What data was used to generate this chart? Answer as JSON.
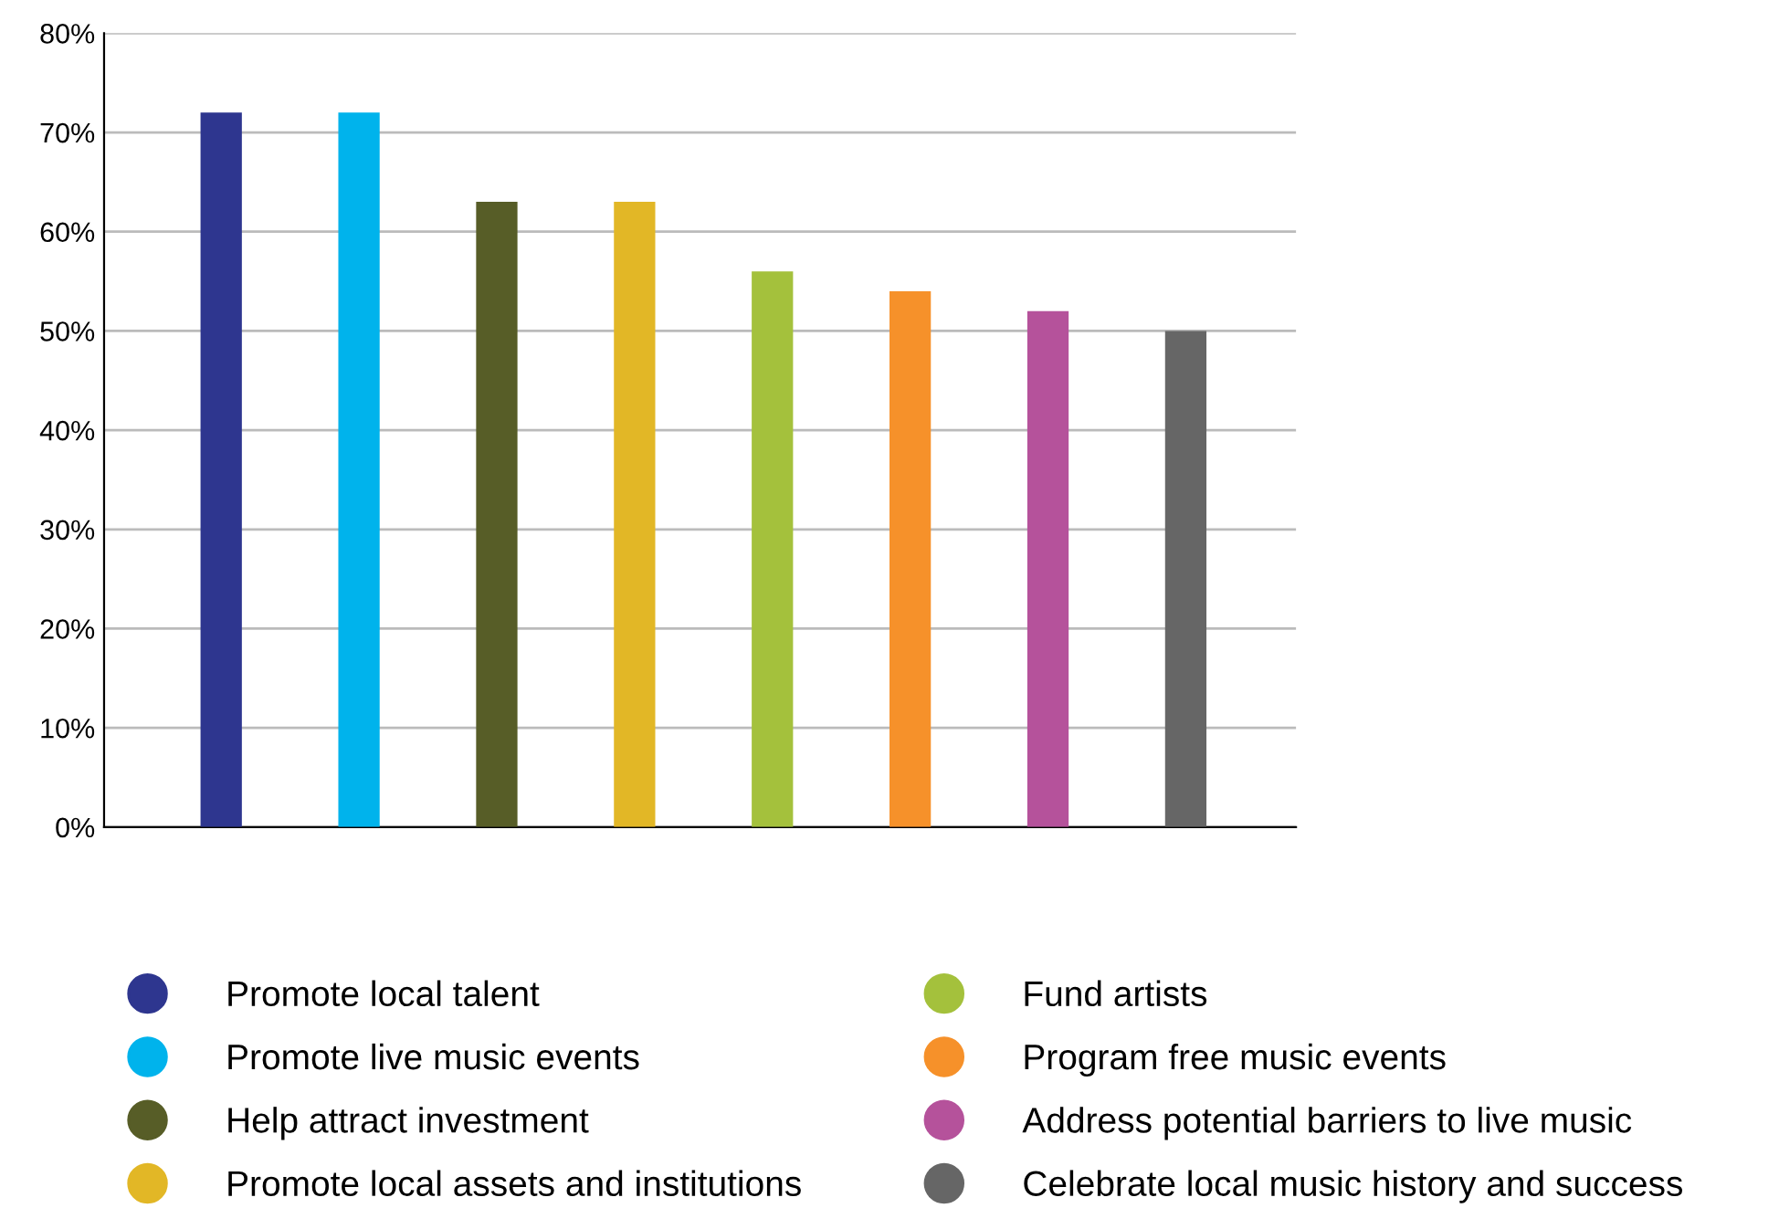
{
  "chart_data": {
    "type": "bar",
    "categories": [
      null,
      null,
      null,
      null,
      null,
      null,
      null,
      null
    ],
    "series": [
      {
        "name": "Promote local talent",
        "color": "#2e368f",
        "values": [
          72,
          null,
          null,
          null,
          null,
          null,
          null,
          null
        ]
      },
      {
        "name": "Promote live music events",
        "color": "#00b3ec",
        "values": [
          null,
          72,
          null,
          null,
          null,
          null,
          null,
          null
        ]
      },
      {
        "name": "Help attract investment",
        "color": "#575d27",
        "values": [
          null,
          null,
          63,
          null,
          null,
          null,
          null,
          null
        ]
      },
      {
        "name": "Promote local assets and institutions",
        "color": "#e2b726",
        "values": [
          null,
          null,
          null,
          63,
          null,
          null,
          null,
          null
        ]
      },
      {
        "name": "Fund artists",
        "color": "#a4c13c",
        "values": [
          null,
          null,
          null,
          null,
          56,
          null,
          null,
          null
        ]
      },
      {
        "name": "Program free music events",
        "color": "#f6912a",
        "values": [
          null,
          null,
          null,
          null,
          null,
          54,
          null,
          null
        ]
      },
      {
        "name": "Address potential barriers to live music",
        "color": "#b5529b",
        "values": [
          null,
          null,
          null,
          null,
          null,
          null,
          52,
          null
        ]
      },
      {
        "name": "Celebrate local music history and success",
        "color": "#666666",
        "values": [
          null,
          null,
          null,
          null,
          null,
          null,
          null,
          50
        ]
      }
    ],
    "ylim": [
      0,
      80
    ],
    "yticks": [
      {
        "value": 0,
        "label": "0%"
      },
      {
        "value": 10,
        "label": "10%"
      },
      {
        "value": 20,
        "label": "20%"
      },
      {
        "value": 30,
        "label": "30%"
      },
      {
        "value": 40,
        "label": "40%"
      },
      {
        "value": 50,
        "label": "50%"
      },
      {
        "value": 60,
        "label": "60%"
      },
      {
        "value": 70,
        "label": "70%"
      },
      {
        "value": 80,
        "label": "80%"
      }
    ],
    "grid": "y",
    "legend": "bottom",
    "tick_labels": "y",
    "marker": "circle"
  }
}
